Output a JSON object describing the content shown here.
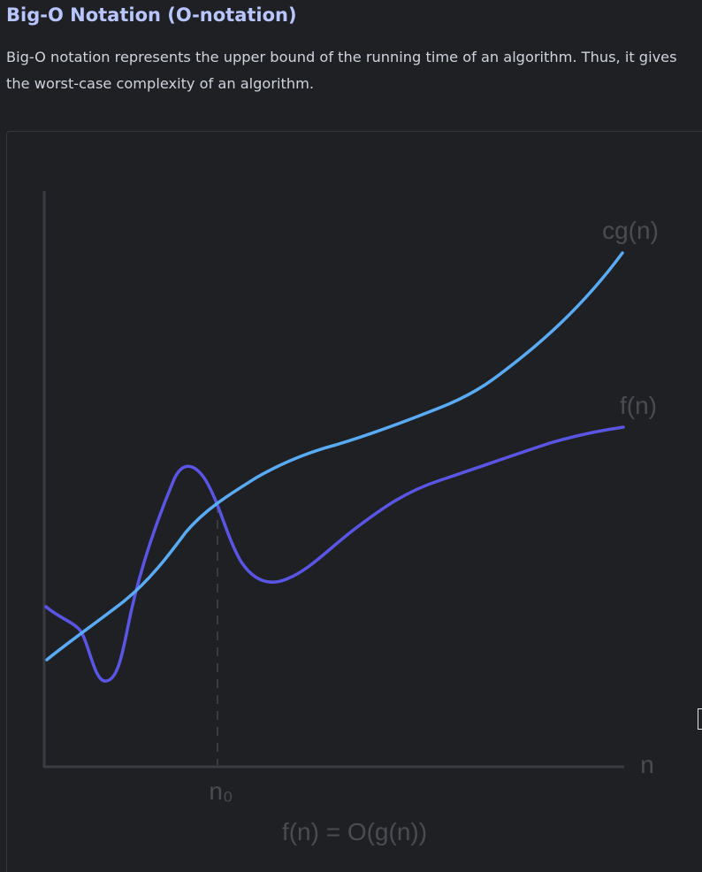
{
  "header": {
    "title": "Big-O Notation (O-notation)"
  },
  "content": {
    "description": "Big-O notation represents the upper bound of the running time of an algorithm. Thus, it gives the worst-case complexity of an algorithm."
  },
  "figure": {
    "label_cg": "cg(n)",
    "label_f": "f(n)",
    "label_x_axis": "n",
    "label_n0": "n₀",
    "caption": "f(n) = O(g(n))"
  },
  "colors": {
    "background": "#1f2024",
    "title": "#b9c5ff",
    "text": "#cfd3dc",
    "cg_curve": "#5aabf5",
    "f_curve": "#5b55e6",
    "axis": "#3a3c42",
    "figure_labels": "#4a4c52"
  }
}
